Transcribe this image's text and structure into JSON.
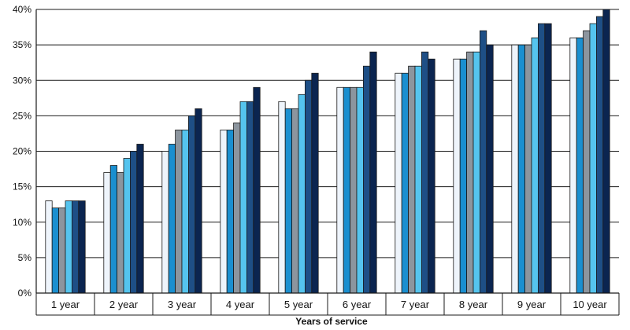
{
  "chart_data": {
    "type": "bar",
    "title": "",
    "xlabel": "Years of service",
    "ylabel": "",
    "ylim": [
      0,
      40
    ],
    "yticks": [
      0,
      5,
      10,
      15,
      20,
      25,
      30,
      35,
      40
    ],
    "ytick_labels": [
      "0%",
      "5%",
      "10%",
      "15%",
      "20%",
      "25%",
      "30%",
      "35%",
      "40%"
    ],
    "grid": true,
    "legend": "none",
    "categories": [
      "1 year",
      "2 year",
      "3 year",
      "4 year",
      "5 year",
      "6 year",
      "7 year",
      "8 year",
      "9 year",
      "10 year"
    ],
    "series_colors": [
      "#eef4fb",
      "#1a8fd0",
      "#8c959e",
      "#55c4ee",
      "#1e4f86",
      "#0b2550"
    ],
    "series": [
      {
        "values": [
          13,
          17,
          20,
          23,
          27,
          29,
          31,
          33,
          35,
          36
        ]
      },
      {
        "values": [
          12,
          18,
          21,
          23,
          26,
          29,
          31,
          33,
          35,
          36
        ]
      },
      {
        "values": [
          12,
          17,
          23,
          24,
          26,
          29,
          32,
          34,
          35,
          37
        ]
      },
      {
        "values": [
          13,
          19,
          23,
          27,
          28,
          29,
          32,
          34,
          36,
          38
        ]
      },
      {
        "values": [
          13,
          20,
          25,
          27,
          30,
          32,
          34,
          37,
          38,
          39
        ]
      },
      {
        "values": [
          13,
          21,
          26,
          29,
          31,
          34,
          33,
          35,
          38,
          40
        ]
      }
    ]
  }
}
